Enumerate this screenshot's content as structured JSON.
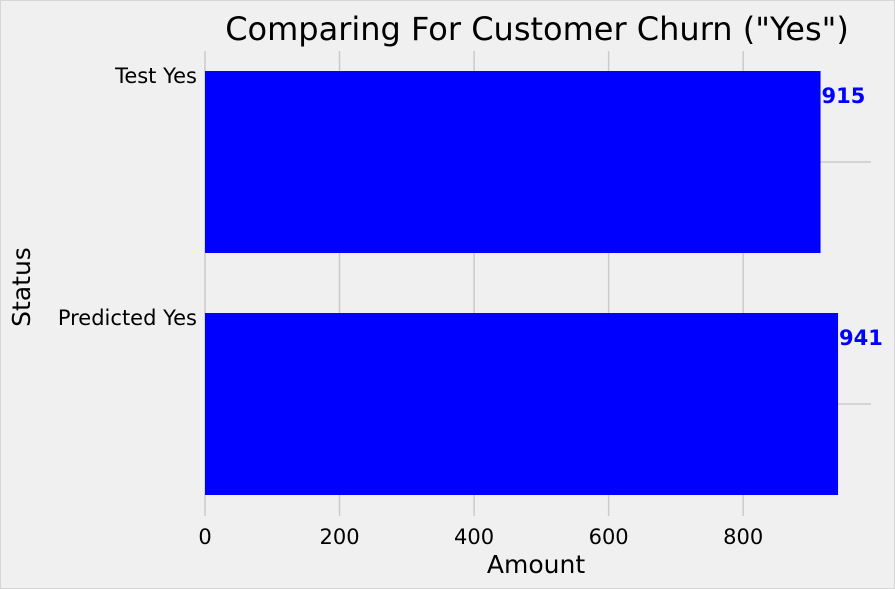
{
  "chart_data": {
    "type": "bar",
    "orientation": "horizontal",
    "title": "Comparing For Customer Churn (\"Yes\")",
    "xlabel": "Amount",
    "ylabel": "Status",
    "categories": [
      "Test Yes",
      "Predicted Yes"
    ],
    "values": [
      915,
      941
    ],
    "data_labels": [
      "915",
      "941"
    ],
    "xlim": [
      0,
      990
    ],
    "xticks": [
      0,
      200,
      400,
      600,
      800
    ],
    "xtick_labels": [
      "0",
      "200",
      "400",
      "600",
      "800"
    ],
    "grid": true,
    "legend": "none",
    "colors": {
      "bar": "#0000ff",
      "data_label": "#0000ff",
      "background": "#f0f0f0",
      "grid": "#cbcbcb",
      "text": "#000000"
    }
  }
}
